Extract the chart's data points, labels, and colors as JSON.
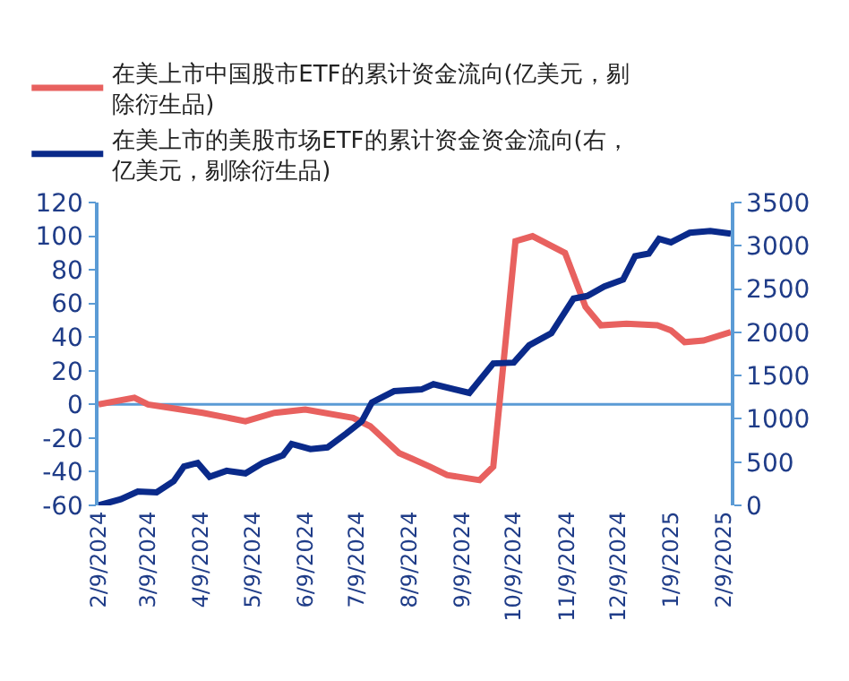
{
  "chart_data": {
    "type": "line",
    "legend": "top",
    "marker": "none",
    "line_style": "solid",
    "ref_lines": [
      {
        "axis": "y",
        "value": 0,
        "color": "#5b9bd5"
      }
    ],
    "xlim": [
      "2024-02-09",
      "2025-02-13"
    ],
    "xticks": [
      {
        "value": "2024-02-09",
        "label": "2/9/2024"
      },
      {
        "value": "2024-03-09",
        "label": "3/9/2024"
      },
      {
        "value": "2024-04-09",
        "label": "4/9/2024"
      },
      {
        "value": "2024-05-09",
        "label": "5/9/2024"
      },
      {
        "value": "2024-06-09",
        "label": "6/9/2024"
      },
      {
        "value": "2024-07-09",
        "label": "7/9/2024"
      },
      {
        "value": "2024-08-09",
        "label": "8/9/2024"
      },
      {
        "value": "2024-09-09",
        "label": "9/9/2024"
      },
      {
        "value": "2024-10-09",
        "label": "10/9/2024"
      },
      {
        "value": "2024-11-09",
        "label": "11/9/2024"
      },
      {
        "value": "2024-12-09",
        "label": "12/9/2024"
      },
      {
        "value": "2025-01-09",
        "label": "1/9/2025"
      },
      {
        "value": "2025-02-09",
        "label": "2/9/2025"
      }
    ],
    "ylim": [
      -60,
      120
    ],
    "yticks": [
      -60,
      -40,
      -20,
      0,
      20,
      40,
      60,
      80,
      100,
      120
    ],
    "y2lim": [
      0,
      3500
    ],
    "y2ticks": [
      0,
      500,
      1000,
      1500,
      2000,
      2500,
      3000,
      3500
    ],
    "series": [
      {
        "name": "在美上市中国股市ETF的累计资金流向(亿美元，剔除衍生品)",
        "color": "#e8615f",
        "x": [
          "2024-02-09",
          "2024-03-01",
          "2024-03-09",
          "2024-04-10",
          "2024-05-05",
          "2024-05-22",
          "2024-06-09",
          "2024-07-07",
          "2024-07-17",
          "2024-08-03",
          "2024-08-10",
          "2024-08-21",
          "2024-08-31",
          "2024-09-19",
          "2024-09-27",
          "2024-10-10",
          "2024-10-20",
          "2024-11-08",
          "2024-11-20",
          "2024-11-29",
          "2024-12-14",
          "2025-01-01",
          "2025-01-09",
          "2025-01-17",
          "2025-01-28",
          "2025-02-13"
        ],
        "values": [
          0,
          4,
          0,
          -5,
          -10,
          -5,
          -3,
          -8,
          -13,
          -29,
          -32,
          -37,
          -42,
          -45,
          -37,
          97,
          100,
          90,
          58,
          47,
          48,
          47,
          44,
          37,
          38,
          43
        ]
      },
      {
        "name": "在美上市的美股市场ETF的累计资金资金流向(右，亿美元，剔除衍生品)",
        "color": "#0a2a8a",
        "axis": "y2",
        "x": [
          "2024-02-09",
          "2024-02-22",
          "2024-03-03",
          "2024-03-14",
          "2024-03-24",
          "2024-03-30",
          "2024-04-07",
          "2024-04-14",
          "2024-04-24",
          "2024-05-05",
          "2024-05-15",
          "2024-05-27",
          "2024-06-01",
          "2024-06-12",
          "2024-06-22",
          "2024-07-03",
          "2024-07-12",
          "2024-07-18",
          "2024-07-31",
          "2024-08-16",
          "2024-08-23",
          "2024-09-13",
          "2024-09-27",
          "2024-10-09",
          "2024-10-18",
          "2024-10-31",
          "2024-11-13",
          "2024-11-21",
          "2024-12-01",
          "2024-12-12",
          "2024-12-19",
          "2024-12-27",
          "2025-01-02",
          "2025-01-09",
          "2025-01-20",
          "2025-02-01",
          "2025-02-13"
        ],
        "values": [
          0,
          70,
          160,
          150,
          280,
          450,
          490,
          330,
          400,
          370,
          490,
          580,
          710,
          650,
          670,
          830,
          970,
          1190,
          1320,
          1340,
          1400,
          1300,
          1640,
          1650,
          1850,
          1990,
          2390,
          2420,
          2530,
          2610,
          2880,
          2910,
          3080,
          3040,
          3150,
          3170,
          3140
        ]
      }
    ]
  }
}
